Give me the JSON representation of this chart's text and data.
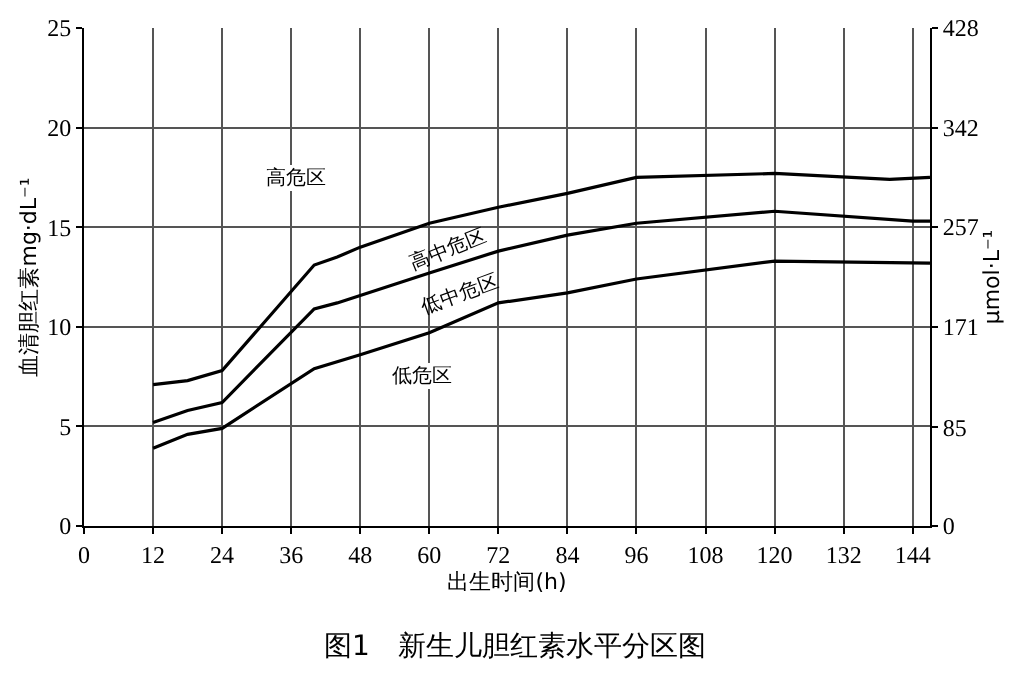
{
  "chart_data": {
    "type": "line",
    "title": "图1　新生儿胆红素水平分区图",
    "xlabel": "出生时间(h)",
    "ylabel": "血清胆红素mg·dL⁻¹",
    "y2label": "μmol·L⁻¹",
    "xlim": [
      0,
      147
    ],
    "xticks": [
      0,
      12,
      24,
      36,
      48,
      60,
      72,
      84,
      96,
      108,
      120,
      132,
      144
    ],
    "ylim": [
      0,
      25
    ],
    "yticks": [
      0,
      5,
      10,
      15,
      20,
      25
    ],
    "y2lim": [
      0,
      428
    ],
    "y2ticks": [
      0,
      85,
      171,
      257,
      342,
      428
    ],
    "grid": true,
    "marker": "none",
    "line_style": "solid",
    "series": [
      {
        "color": "#000000",
        "x": [
          12,
          18,
          24,
          40,
          44,
          48,
          60,
          72,
          84,
          96,
          120,
          140,
          147
        ],
        "values": [
          7.1,
          7.3,
          7.8,
          13.1,
          13.5,
          14.0,
          15.2,
          16.0,
          16.7,
          17.5,
          17.7,
          17.4,
          17.5
        ]
      },
      {
        "color": "#000000",
        "x": [
          12,
          18,
          24,
          40,
          44,
          60,
          72,
          84,
          96,
          120,
          144,
          147
        ],
        "values": [
          5.2,
          5.8,
          6.2,
          10.9,
          11.2,
          12.7,
          13.8,
          14.6,
          15.2,
          15.8,
          15.3,
          15.3
        ]
      },
      {
        "color": "#000000",
        "x": [
          12,
          18,
          24,
          40,
          48,
          60,
          72,
          84,
          96,
          120,
          147
        ],
        "values": [
          3.9,
          4.6,
          4.9,
          7.9,
          8.6,
          9.7,
          11.2,
          11.7,
          12.4,
          13.3,
          13.2
        ]
      }
    ],
    "annotations": [
      "高危区",
      "高中危区",
      "低中危区",
      "低危区"
    ]
  }
}
